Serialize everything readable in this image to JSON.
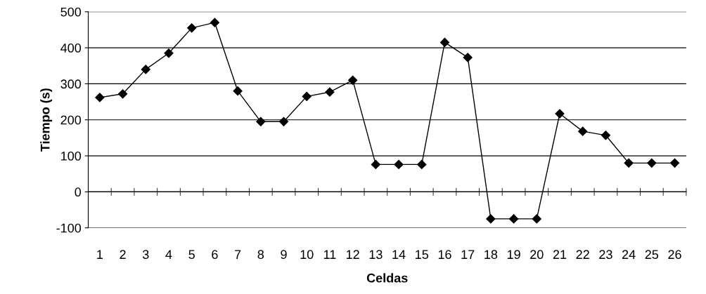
{
  "chart_data": {
    "type": "line",
    "xlabel": "Celdas",
    "ylabel": "Tiempo (s)",
    "categories": [
      "1",
      "2",
      "3",
      "4",
      "5",
      "6",
      "7",
      "8",
      "9",
      "10",
      "11",
      "12",
      "13",
      "14",
      "15",
      "16",
      "17",
      "18",
      "19",
      "20",
      "21",
      "22",
      "23",
      "24",
      "25",
      "26"
    ],
    "series": [
      {
        "color": "#000000",
        "values": [
          262,
          272,
          340,
          385,
          455,
          470,
          280,
          195,
          195,
          265,
          277,
          310,
          76,
          76,
          76,
          415,
          373,
          -75,
          -75,
          -75,
          217,
          168,
          157,
          80,
          80,
          80
        ]
      }
    ],
    "ylim": [
      -100,
      500
    ],
    "yticks": [
      -100,
      0,
      100,
      200,
      300,
      400,
      500
    ],
    "grid": "y",
    "marker": "diamond",
    "line_style": "solid"
  }
}
